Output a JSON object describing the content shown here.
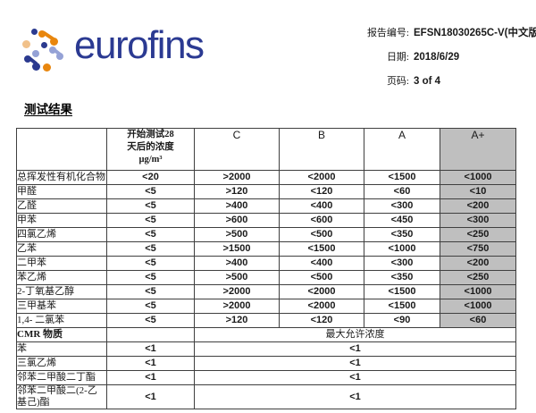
{
  "logo": {
    "text": "eurofins"
  },
  "report_info": {
    "rows": [
      {
        "label": "报告编号:",
        "value": "EFSN18030265C-V(中文版)"
      },
      {
        "label": "日期:",
        "value": "2018/6/29"
      },
      {
        "label": "页码:",
        "value": "3 of 4"
      }
    ]
  },
  "section_title": "测试结果",
  "table": {
    "header": {
      "substance": "",
      "start": "开始测试28\n天后的浓度\nµg/m³",
      "classes": [
        "C",
        "B",
        "A",
        "A+"
      ]
    },
    "voc_rows": [
      {
        "name": "总挥发性有机化合物",
        "start": "<20",
        "c": ">2000",
        "b": "<2000",
        "a": "<1500",
        "aplus": "<1000"
      },
      {
        "name": "甲醛",
        "start": "<5",
        "c": ">120",
        "b": "<120",
        "a": "<60",
        "aplus": "<10"
      },
      {
        "name": "乙醛",
        "start": "<5",
        "c": ">400",
        "b": "<400",
        "a": "<300",
        "aplus": "<200"
      },
      {
        "name": "甲苯",
        "start": "<5",
        "c": ">600",
        "b": "<600",
        "a": "<450",
        "aplus": "<300"
      },
      {
        "name": "四氯乙烯",
        "start": "<5",
        "c": ">500",
        "b": "<500",
        "a": "<350",
        "aplus": "<250"
      },
      {
        "name": "乙苯",
        "start": "<5",
        "c": ">1500",
        "b": "<1500",
        "a": "<1000",
        "aplus": "<750"
      },
      {
        "name": "二甲苯",
        "start": "<5",
        "c": ">400",
        "b": "<400",
        "a": "<300",
        "aplus": "<200"
      },
      {
        "name": "苯乙烯",
        "start": "<5",
        "c": ">500",
        "b": "<500",
        "a": "<350",
        "aplus": "<250"
      },
      {
        "name": "2-丁氧基乙醇",
        "start": "<5",
        "c": ">2000",
        "b": "<2000",
        "a": "<1500",
        "aplus": "<1000"
      },
      {
        "name": "三甲基苯",
        "start": "<5",
        "c": ">2000",
        "b": "<2000",
        "a": "<1500",
        "aplus": "<1000"
      },
      {
        "name": "1,4- 二氯苯",
        "start": "<5",
        "c": ">120",
        "b": "<120",
        "a": "<90",
        "aplus": "<60"
      }
    ],
    "cmr_header": {
      "name": "CMR 物质",
      "start": "",
      "merged": "最大允许浓度"
    },
    "cmr_rows": [
      {
        "name": "苯",
        "start": "<1",
        "merged": "<1"
      },
      {
        "name": "三氯乙烯",
        "start": "<1",
        "merged": "<1"
      },
      {
        "name": "邻苯二甲酸二丁酯",
        "start": "<1",
        "merged": "<1"
      },
      {
        "name": "邻苯二甲酸二(2-乙基己)酯",
        "start": "<1",
        "merged": "<1"
      }
    ]
  },
  "colors": {
    "aplus_column_bg": "#bfbfbf",
    "table_border": "#3f3f3f",
    "logo_navy": "#2b3a92",
    "logo_orange": "#e8860e",
    "logo_periwinkle": "#95a2d6",
    "logo_tan": "#f1c18a"
  }
}
